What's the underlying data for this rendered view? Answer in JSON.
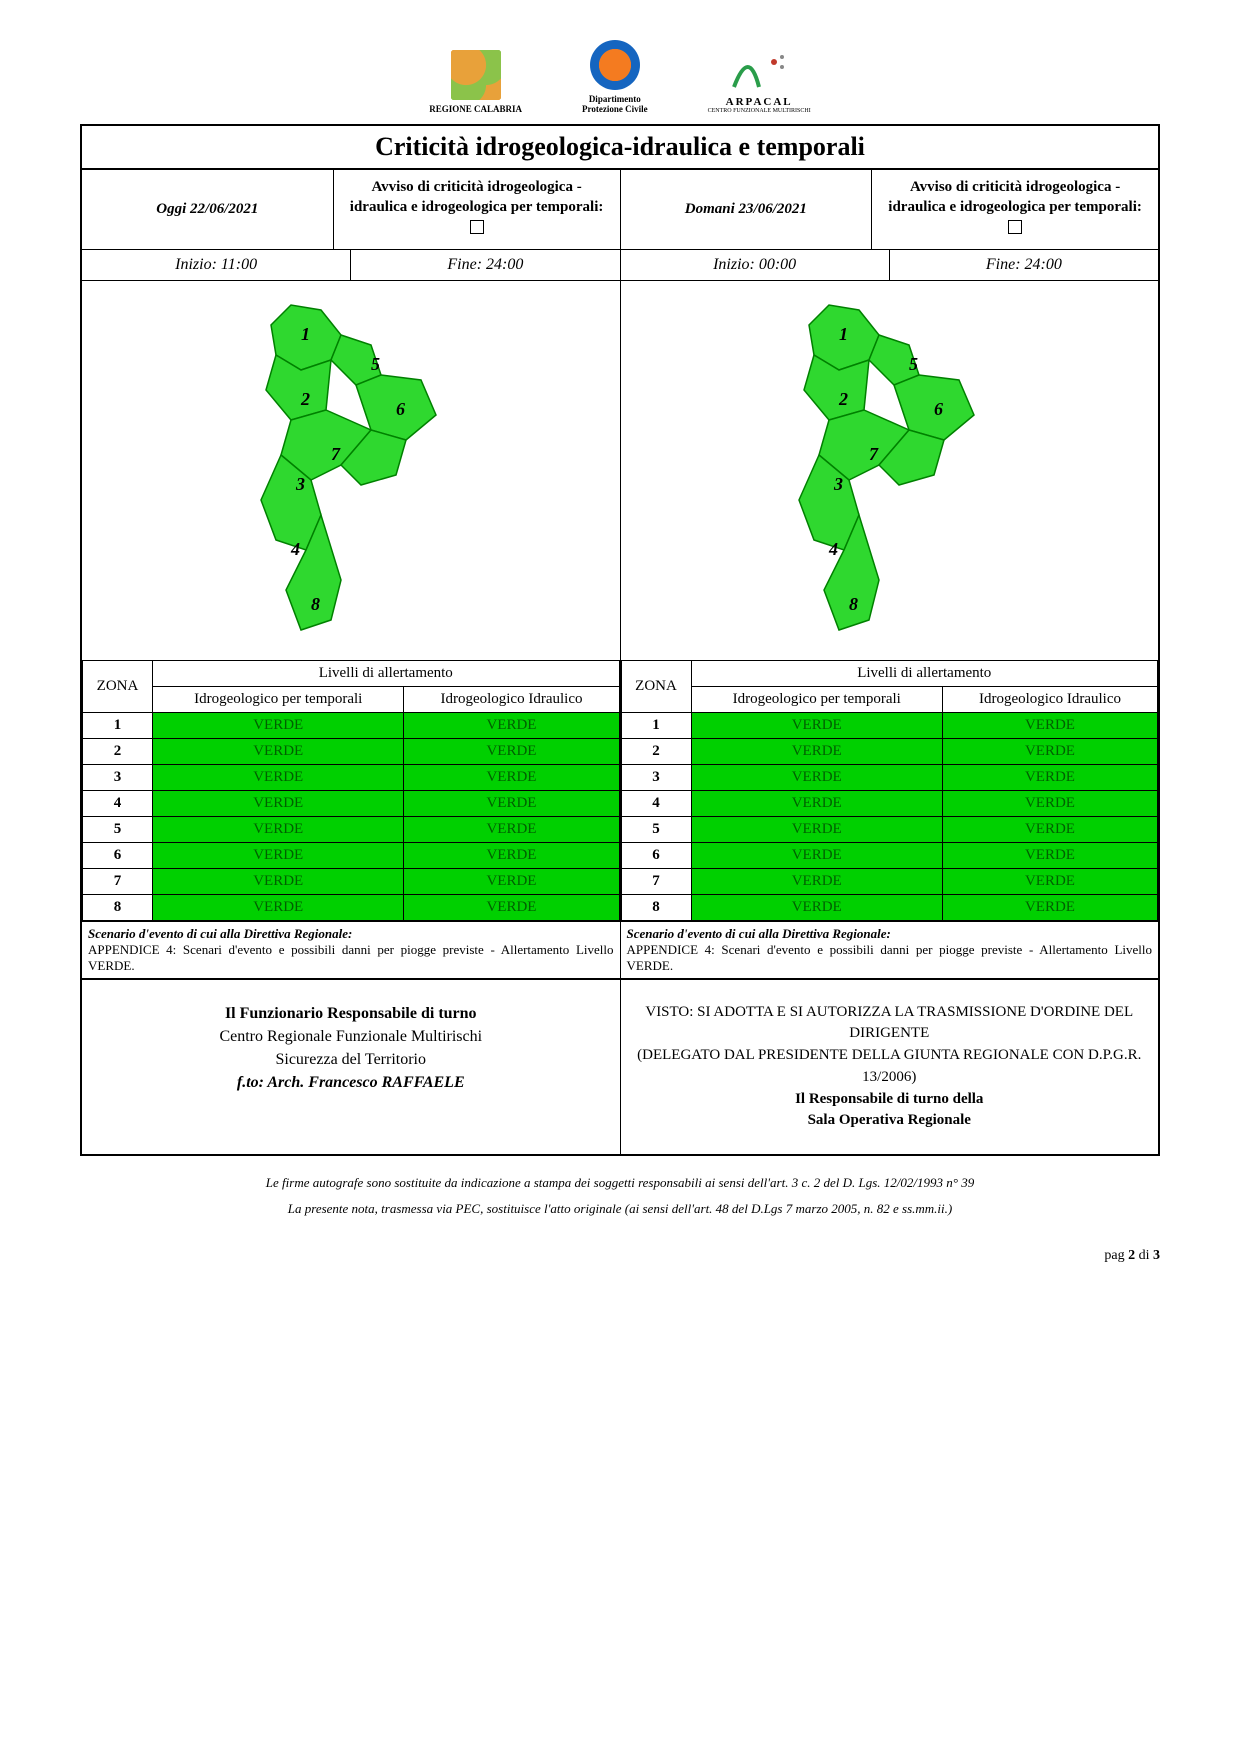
{
  "logos": {
    "regione": "REGIONE CALABRIA",
    "protezione_l1": "Dipartimento",
    "protezione_l2": "Protezione Civile",
    "arpacal": "ARPACAL",
    "arpacal_sub": "CENTRO FUNZIONALE MULTIRISCHI"
  },
  "title": "Criticità idrogeologica-idraulica e temporali",
  "today": {
    "date_label": "Oggi 22/06/2021",
    "avviso": "Avviso di criticità idrogeologica - idraulica e idrogeologica per temporali:",
    "inizio": "Inizio: 11:00",
    "fine": "Fine: 24:00"
  },
  "tomorrow": {
    "date_label": "Domani 23/06/2021",
    "avviso": "Avviso di criticità idrogeologica - idraulica e idrogeologica per temporali:",
    "inizio": "Inizio: 00:00",
    "fine": "Fine: 24:00"
  },
  "map": {
    "fill": "#2fd82f",
    "stroke": "#008000",
    "zones": [
      "1",
      "2",
      "3",
      "4",
      "5",
      "6",
      "7",
      "8"
    ]
  },
  "table_headers": {
    "zona": "ZONA",
    "livelli": "Livelli di allertamento",
    "col1": "Idrogeologico per temporali",
    "col2": "Idrogeologico Idraulico"
  },
  "levels_today": [
    {
      "z": "1",
      "a": "VERDE",
      "b": "VERDE"
    },
    {
      "z": "2",
      "a": "VERDE",
      "b": "VERDE"
    },
    {
      "z": "3",
      "a": "VERDE",
      "b": "VERDE"
    },
    {
      "z": "4",
      "a": "VERDE",
      "b": "VERDE"
    },
    {
      "z": "5",
      "a": "VERDE",
      "b": "VERDE"
    },
    {
      "z": "6",
      "a": "VERDE",
      "b": "VERDE"
    },
    {
      "z": "7",
      "a": "VERDE",
      "b": "VERDE"
    },
    {
      "z": "8",
      "a": "VERDE",
      "b": "VERDE"
    }
  ],
  "levels_tomorrow": [
    {
      "z": "1",
      "a": "VERDE",
      "b": "VERDE"
    },
    {
      "z": "2",
      "a": "VERDE",
      "b": "VERDE"
    },
    {
      "z": "3",
      "a": "VERDE",
      "b": "VERDE"
    },
    {
      "z": "4",
      "a": "VERDE",
      "b": "VERDE"
    },
    {
      "z": "5",
      "a": "VERDE",
      "b": "VERDE"
    },
    {
      "z": "6",
      "a": "VERDE",
      "b": "VERDE"
    },
    {
      "z": "7",
      "a": "VERDE",
      "b": "VERDE"
    },
    {
      "z": "8",
      "a": "VERDE",
      "b": "VERDE"
    }
  ],
  "scenario": {
    "title": "Scenario d'evento di cui alla Direttiva Regionale:",
    "body": "APPENDICE 4: Scenari d'evento e possibili danni per piogge previste - Allertamento Livello VERDE."
  },
  "sign_left": {
    "l1": "Il Funzionario Responsabile di turno",
    "l2": "Centro Regionale Funzionale Multirischi",
    "l3": "Sicurezza del Territorio",
    "l4": "f.to: Arch. Francesco RAFFAELE"
  },
  "sign_right": {
    "l1": "VISTO: SI ADOTTA E SI AUTORIZZA LA TRASMISSIONE D'ORDINE DEL DIRIGENTE",
    "l2": "(DELEGATO DAL PRESIDENTE DELLA GIUNTA REGIONALE CON D.P.G.R. 13/2006)",
    "l3": "Il Responsabile di turno della",
    "l4": "Sala Operativa Regionale"
  },
  "footer": {
    "n1": "Le firme autografe sono sostituite da indicazione a stampa dei soggetti responsabili ai sensi dell'art. 3 c. 2 del D. Lgs. 12/02/1993 n° 39",
    "n2": "La presente nota, trasmessa via PEC, sostituisce l'atto originale (ai sensi dell'art. 48 del D.Lgs 7 marzo 2005, n. 82 e ss.mm.ii.)"
  },
  "page": {
    "pre": "pag ",
    "cur": "2",
    "mid": " di ",
    "tot": "3"
  }
}
